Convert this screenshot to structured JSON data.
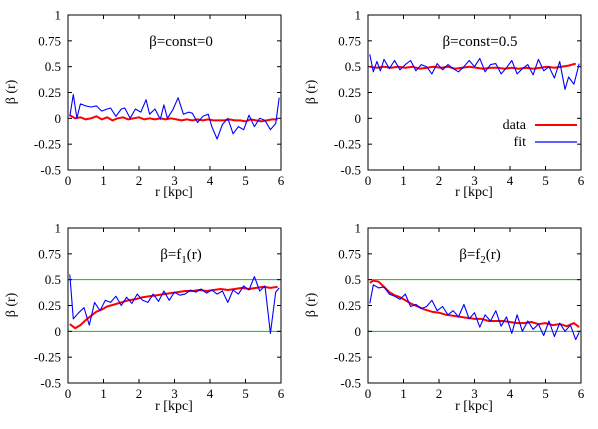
{
  "chart_data": [
    {
      "type": "line",
      "title": "β=const=0",
      "xlabel": "r [kpc]",
      "ylabel": "β (r)",
      "xlim": [
        0,
        6
      ],
      "ylim": [
        -0.5,
        1
      ],
      "x_ticks": [
        "0",
        "1",
        "2",
        "3",
        "4",
        "5",
        "6"
      ],
      "y_ticks": [
        "-0.5",
        "-0.25",
        "0",
        "0.25",
        "0.5",
        "0.75",
        "1"
      ],
      "reference_lines": [],
      "legend": null,
      "series": [
        {
          "name": "data",
          "color": "#ff0000",
          "x": [
            0.05,
            0.2,
            0.35,
            0.5,
            0.65,
            0.8,
            0.95,
            1.1,
            1.25,
            1.4,
            1.55,
            1.7,
            1.85,
            2.0,
            2.15,
            2.3,
            2.45,
            2.6,
            2.75,
            2.9,
            3.05,
            3.2,
            3.35,
            3.5,
            3.65,
            3.8,
            3.95,
            4.1,
            4.25,
            4.4,
            4.55,
            4.7,
            4.85,
            5.0,
            5.15,
            5.3,
            5.45,
            5.6,
            5.75,
            5.9
          ],
          "y": [
            0.03,
            0.0,
            0.01,
            -0.01,
            0.0,
            0.02,
            -0.01,
            0.01,
            -0.02,
            0.0,
            0.01,
            -0.01,
            0.0,
            0.01,
            -0.01,
            0.0,
            -0.01,
            0.0,
            -0.01,
            0.0,
            -0.01,
            -0.02,
            -0.01,
            -0.02,
            -0.01,
            -0.02,
            -0.01,
            -0.02,
            -0.02,
            -0.02,
            -0.01,
            -0.02,
            -0.02,
            -0.03,
            -0.01,
            -0.02,
            -0.03,
            -0.02,
            -0.01,
            -0.01
          ]
        },
        {
          "name": "fit",
          "color": "#0000ff",
          "x": [
            0.05,
            0.15,
            0.25,
            0.35,
            0.5,
            0.65,
            0.8,
            0.95,
            1.1,
            1.2,
            1.35,
            1.5,
            1.6,
            1.75,
            1.9,
            2.05,
            2.2,
            2.3,
            2.45,
            2.6,
            2.7,
            2.8,
            2.95,
            3.1,
            3.25,
            3.4,
            3.5,
            3.65,
            3.8,
            3.95,
            4.05,
            4.2,
            4.35,
            4.5,
            4.65,
            4.8,
            4.95,
            5.1,
            5.25,
            5.4,
            5.55,
            5.7,
            5.85,
            5.95
          ],
          "y": [
            0.02,
            0.23,
            0.0,
            0.14,
            0.12,
            0.11,
            0.12,
            0.07,
            0.09,
            0.1,
            0.02,
            0.09,
            0.1,
            0.0,
            0.09,
            0.06,
            0.18,
            0.04,
            0.09,
            -0.01,
            0.13,
            0.0,
            0.08,
            0.2,
            0.04,
            0.06,
            0.05,
            -0.04,
            0.02,
            0.04,
            -0.08,
            -0.2,
            -0.06,
            0.0,
            -0.15,
            -0.08,
            -0.11,
            0.03,
            -0.08,
            0.0,
            -0.02,
            -0.11,
            -0.05,
            0.2
          ]
        }
      ]
    },
    {
      "type": "line",
      "title": "β=const=0.5",
      "xlabel": "r [kpc]",
      "ylabel": "β (r)",
      "xlim": [
        0,
        6
      ],
      "ylim": [
        -0.5,
        1
      ],
      "x_ticks": [
        "0",
        "1",
        "2",
        "3",
        "4",
        "5",
        "6"
      ],
      "y_ticks": [
        "-0.5",
        "-0.25",
        "0",
        "0.25",
        "0.5",
        "0.75",
        "1"
      ],
      "reference_lines": [],
      "legend": {
        "position": "right",
        "entries": [
          {
            "label": "data",
            "color": "#ff0000"
          },
          {
            "label": "fit",
            "color": "#0000ff"
          }
        ]
      },
      "series": [
        {
          "name": "data",
          "color": "#ff0000",
          "x": [
            0.05,
            0.25,
            0.45,
            0.65,
            0.85,
            1.05,
            1.25,
            1.45,
            1.65,
            1.85,
            2.05,
            2.25,
            2.45,
            2.65,
            2.85,
            3.05,
            3.25,
            3.45,
            3.65,
            3.85,
            4.05,
            4.25,
            4.45,
            4.65,
            4.85,
            5.05,
            5.25,
            5.45,
            5.65,
            5.85
          ],
          "y": [
            0.5,
            0.49,
            0.5,
            0.49,
            0.5,
            0.49,
            0.5,
            0.48,
            0.49,
            0.5,
            0.49,
            0.5,
            0.48,
            0.49,
            0.5,
            0.49,
            0.48,
            0.49,
            0.49,
            0.48,
            0.49,
            0.48,
            0.49,
            0.48,
            0.49,
            0.5,
            0.49,
            0.5,
            0.51,
            0.53
          ]
        },
        {
          "name": "fit",
          "color": "#0000ff",
          "x": [
            0.05,
            0.15,
            0.25,
            0.35,
            0.45,
            0.6,
            0.75,
            0.9,
            1.05,
            1.2,
            1.35,
            1.5,
            1.65,
            1.8,
            1.95,
            2.1,
            2.25,
            2.4,
            2.55,
            2.7,
            2.85,
            3.0,
            3.15,
            3.3,
            3.45,
            3.6,
            3.75,
            3.9,
            4.05,
            4.2,
            4.35,
            4.5,
            4.65,
            4.8,
            4.95,
            5.1,
            5.25,
            5.4,
            5.55,
            5.65,
            5.8,
            5.95
          ],
          "y": [
            0.62,
            0.45,
            0.55,
            0.46,
            0.57,
            0.48,
            0.56,
            0.47,
            0.52,
            0.56,
            0.46,
            0.52,
            0.5,
            0.43,
            0.53,
            0.47,
            0.52,
            0.48,
            0.45,
            0.5,
            0.56,
            0.5,
            0.58,
            0.45,
            0.52,
            0.53,
            0.43,
            0.49,
            0.56,
            0.43,
            0.48,
            0.52,
            0.42,
            0.57,
            0.46,
            0.5,
            0.39,
            0.55,
            0.28,
            0.4,
            0.33,
            0.53
          ]
        }
      ]
    },
    {
      "type": "line",
      "title": "β=f",
      "title_sub": "1",
      "title_tail": "(r)",
      "xlabel": "r [kpc]",
      "ylabel": "β (r)",
      "xlim": [
        0,
        6
      ],
      "ylim": [
        -0.5,
        1
      ],
      "x_ticks": [
        "0",
        "1",
        "2",
        "3",
        "4",
        "5",
        "6"
      ],
      "y_ticks": [
        "-0.5",
        "-0.25",
        "0",
        "0.25",
        "0.5",
        "0.75",
        "1"
      ],
      "reference_lines": [
        {
          "y": 0,
          "color": "#00cc00"
        },
        {
          "y": 0.5,
          "color": "#00cc00"
        }
      ],
      "legend": null,
      "series": [
        {
          "name": "data",
          "color": "#ff0000",
          "x": [
            0.05,
            0.2,
            0.35,
            0.5,
            0.65,
            0.8,
            0.95,
            1.1,
            1.3,
            1.5,
            1.7,
            1.9,
            2.1,
            2.3,
            2.5,
            2.7,
            2.9,
            3.1,
            3.3,
            3.5,
            3.7,
            3.9,
            4.1,
            4.3,
            4.5,
            4.7,
            4.9,
            5.1,
            5.3,
            5.5,
            5.7,
            5.9
          ],
          "y": [
            0.07,
            0.03,
            0.06,
            0.11,
            0.15,
            0.19,
            0.21,
            0.24,
            0.26,
            0.28,
            0.3,
            0.31,
            0.33,
            0.34,
            0.35,
            0.36,
            0.37,
            0.38,
            0.39,
            0.39,
            0.4,
            0.39,
            0.4,
            0.41,
            0.4,
            0.41,
            0.42,
            0.41,
            0.42,
            0.43,
            0.42,
            0.43
          ]
        },
        {
          "name": "fit",
          "color": "#0000ff",
          "x": [
            0.05,
            0.15,
            0.3,
            0.45,
            0.6,
            0.75,
            0.9,
            1.05,
            1.2,
            1.35,
            1.5,
            1.65,
            1.8,
            1.95,
            2.1,
            2.25,
            2.4,
            2.55,
            2.7,
            2.85,
            3.0,
            3.15,
            3.3,
            3.45,
            3.6,
            3.75,
            3.9,
            4.05,
            4.2,
            4.35,
            4.5,
            4.65,
            4.8,
            4.95,
            5.1,
            5.25,
            5.4,
            5.55,
            5.7,
            5.85,
            5.95
          ],
          "y": [
            0.55,
            0.12,
            0.18,
            0.23,
            0.06,
            0.28,
            0.2,
            0.3,
            0.28,
            0.34,
            0.25,
            0.33,
            0.27,
            0.36,
            0.3,
            0.28,
            0.36,
            0.29,
            0.39,
            0.3,
            0.38,
            0.35,
            0.36,
            0.4,
            0.38,
            0.41,
            0.37,
            0.4,
            0.36,
            0.39,
            0.28,
            0.4,
            0.36,
            0.44,
            0.4,
            0.53,
            0.39,
            0.44,
            -0.02,
            0.38,
            0.42
          ]
        }
      ]
    },
    {
      "type": "line",
      "title": "β=f",
      "title_sub": "2",
      "title_tail": "(r)",
      "xlabel": "r [kpc]",
      "ylabel": "β (r)",
      "xlim": [
        0,
        6
      ],
      "ylim": [
        -0.5,
        1
      ],
      "x_ticks": [
        "0",
        "1",
        "2",
        "3",
        "4",
        "5",
        "6"
      ],
      "y_ticks": [
        "-0.5",
        "-0.25",
        "0",
        "0.25",
        "0.5",
        "0.75",
        "1"
      ],
      "reference_lines": [
        {
          "y": 0,
          "color": "#00cc00"
        },
        {
          "y": 0.5,
          "color": "#00cc00"
        }
      ],
      "legend": null,
      "series": [
        {
          "name": "data",
          "color": "#ff0000",
          "x": [
            0.05,
            0.15,
            0.3,
            0.45,
            0.6,
            0.75,
            0.9,
            1.05,
            1.2,
            1.4,
            1.6,
            1.8,
            2.0,
            2.2,
            2.4,
            2.6,
            2.8,
            3.0,
            3.2,
            3.4,
            3.6,
            3.8,
            4.0,
            4.2,
            4.4,
            4.6,
            4.8,
            5.0,
            5.2,
            5.4,
            5.6,
            5.8,
            5.95
          ],
          "y": [
            0.47,
            0.49,
            0.48,
            0.43,
            0.38,
            0.35,
            0.33,
            0.3,
            0.27,
            0.24,
            0.21,
            0.19,
            0.18,
            0.16,
            0.15,
            0.14,
            0.13,
            0.12,
            0.12,
            0.1,
            0.1,
            0.1,
            0.09,
            0.08,
            0.08,
            0.09,
            0.07,
            0.08,
            0.06,
            0.07,
            0.05,
            0.08,
            0.04
          ]
        },
        {
          "name": "fit",
          "color": "#0000ff",
          "x": [
            0.05,
            0.15,
            0.3,
            0.45,
            0.6,
            0.75,
            0.9,
            1.05,
            1.2,
            1.35,
            1.5,
            1.65,
            1.8,
            1.95,
            2.1,
            2.25,
            2.4,
            2.55,
            2.7,
            2.85,
            3.0,
            3.15,
            3.3,
            3.45,
            3.6,
            3.75,
            3.9,
            4.05,
            4.2,
            4.35,
            4.5,
            4.65,
            4.8,
            4.95,
            5.1,
            5.25,
            5.4,
            5.55,
            5.7,
            5.85,
            5.95
          ],
          "y": [
            0.27,
            0.45,
            0.42,
            0.43,
            0.36,
            0.34,
            0.31,
            0.36,
            0.24,
            0.26,
            0.22,
            0.24,
            0.3,
            0.2,
            0.24,
            0.16,
            0.2,
            0.14,
            0.26,
            0.12,
            0.18,
            0.04,
            0.16,
            0.1,
            0.2,
            0.05,
            0.14,
            -0.02,
            0.16,
            0.0,
            0.1,
            0.02,
            0.07,
            -0.04,
            0.1,
            -0.05,
            0.08,
            0.0,
            0.06,
            -0.08,
            -0.01
          ]
        }
      ]
    }
  ]
}
